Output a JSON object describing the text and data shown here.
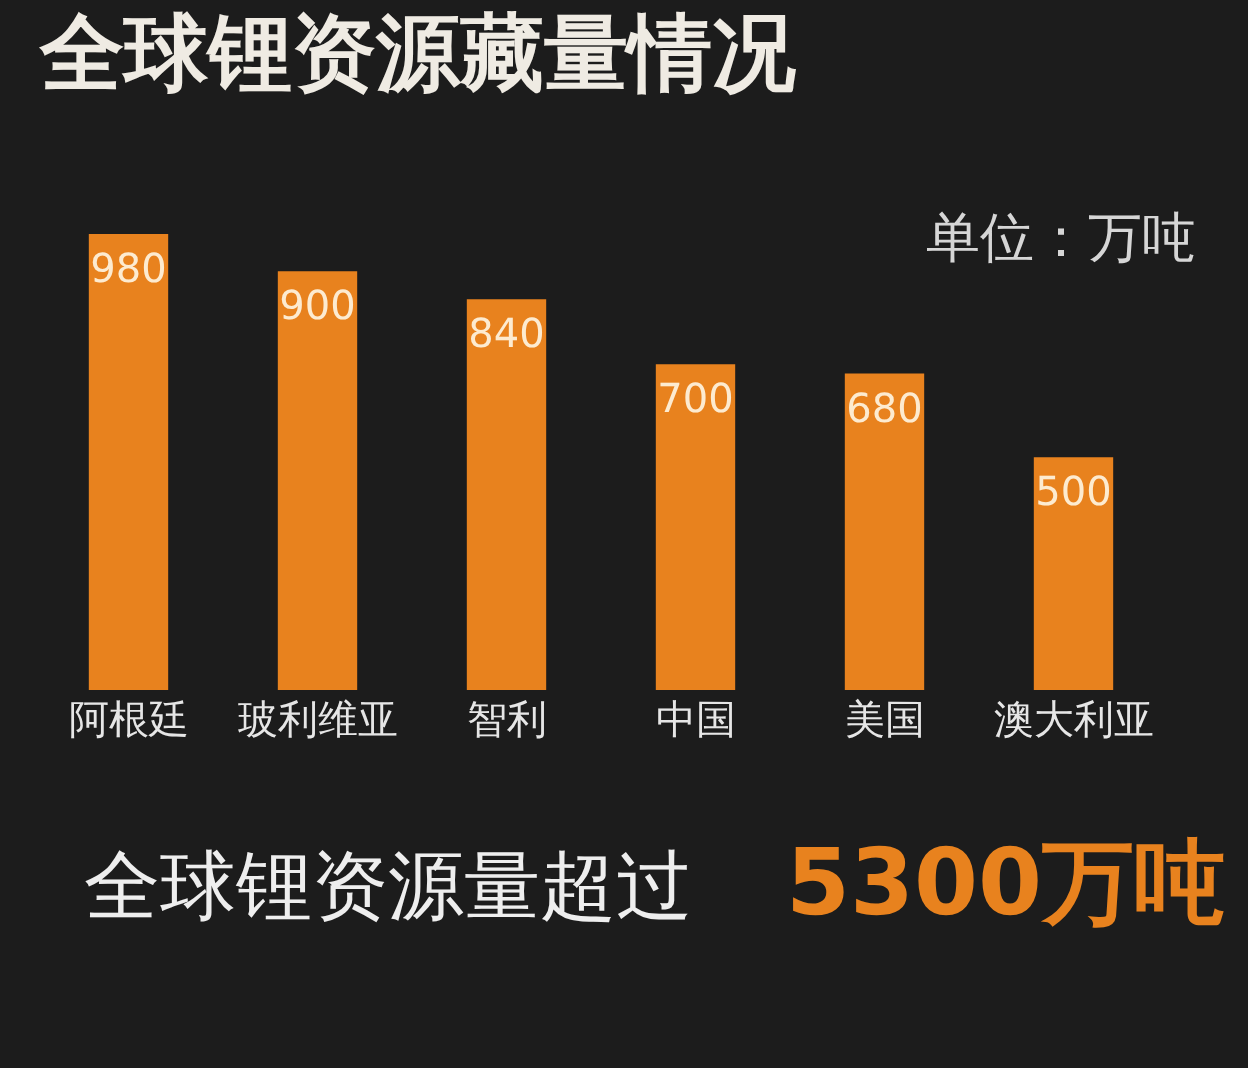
{
  "chart_data": {
    "type": "bar",
    "title": "全球锂资源藏量情况",
    "subtitle": "单位：万吨",
    "categories": [
      "阿根廷",
      "玻利维亚",
      "智利",
      "中国",
      "美国",
      "澳大利亚"
    ],
    "values": [
      980,
      900,
      840,
      700,
      680,
      500
    ],
    "color": "#e8821e",
    "data_labels": true,
    "tick_labels": "x",
    "annotations": [
      "全球锂资源量超过",
      "5300万吨"
    ]
  }
}
